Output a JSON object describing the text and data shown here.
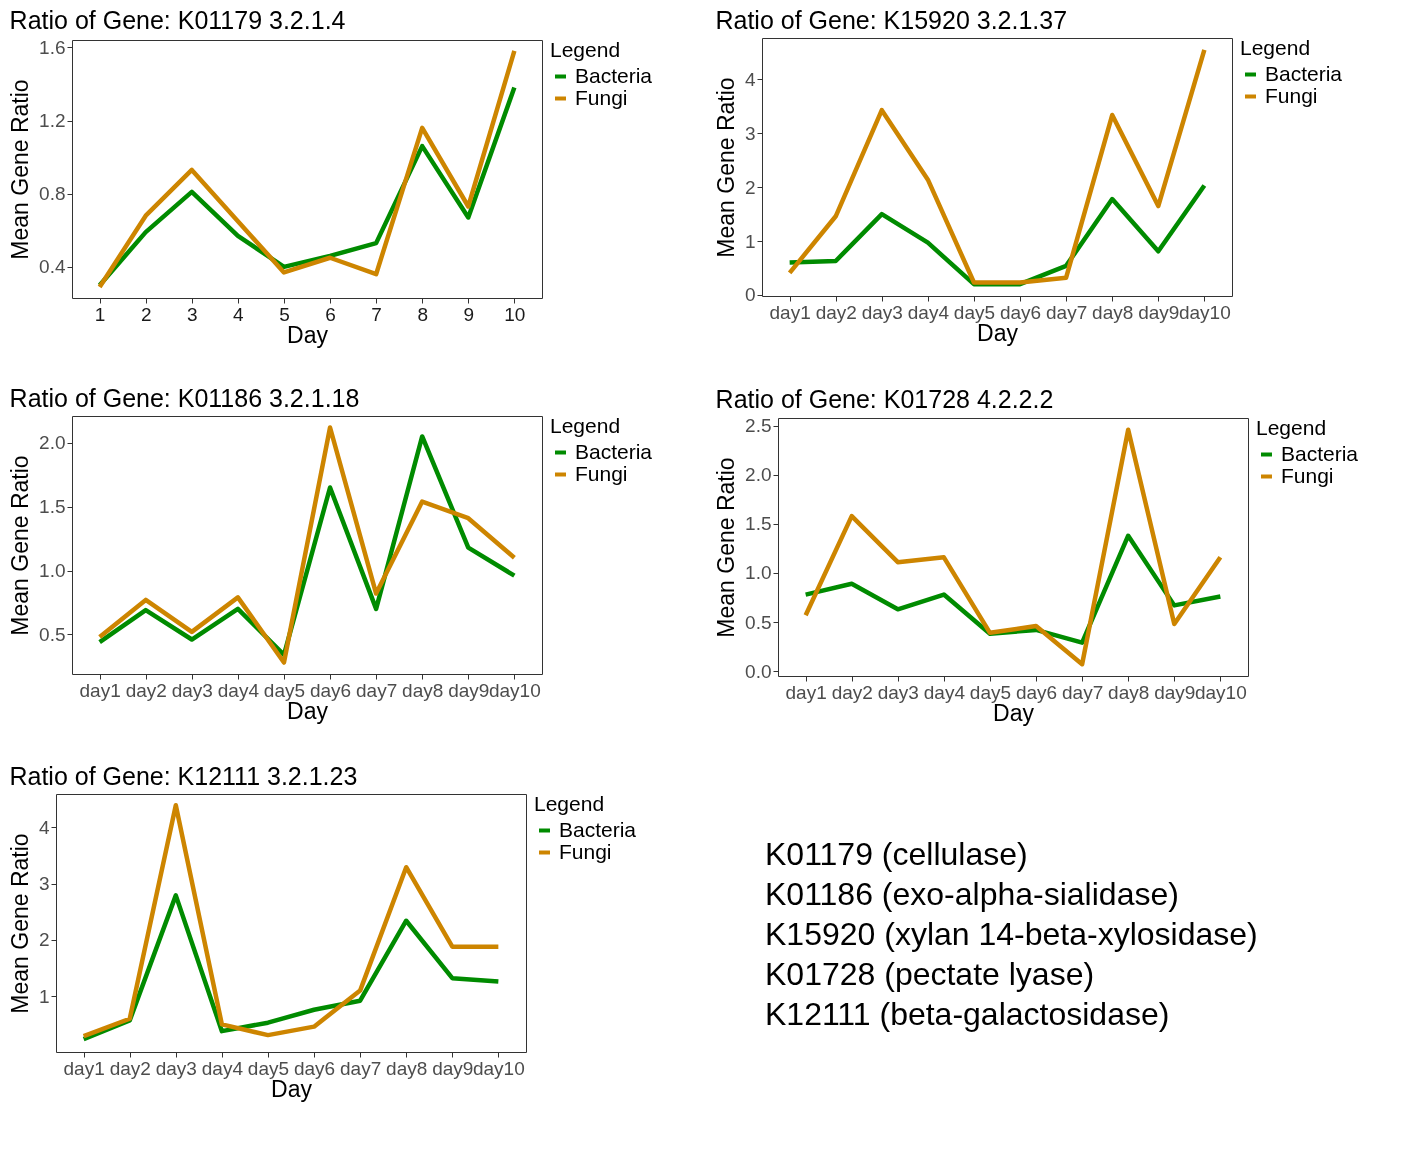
{
  "chart_data": [
    {
      "type": "line",
      "title": "Ratio of Gene: K01179   3.2.1.4",
      "xlabel": "Day",
      "ylabel": "Mean Gene Ratio",
      "legend_title": "Legend",
      "legend": "right",
      "x": [
        1,
        2,
        3,
        4,
        5,
        6,
        7,
        8,
        9,
        10
      ],
      "xlim": [
        0.4,
        10.6
      ],
      "xticks": [
        1,
        2,
        3,
        4,
        5,
        6,
        7,
        8,
        9,
        10
      ],
      "ylim": [
        0.23,
        1.64
      ],
      "yticks": [
        0.4,
        0.8,
        1.2,
        1.6
      ],
      "series": [
        {
          "name": "Bacteria",
          "color": "#008b00",
          "values": [
            0.3,
            0.59,
            0.81,
            0.57,
            0.4,
            0.46,
            0.53,
            1.06,
            0.67,
            1.38
          ]
        },
        {
          "name": "Fungi",
          "color": "#cd8500",
          "values": [
            0.29,
            0.68,
            0.93,
            0.65,
            0.37,
            0.45,
            0.36,
            1.16,
            0.73,
            1.58
          ]
        }
      ]
    },
    {
      "type": "line",
      "title": "Ratio of Gene: K15920   3.2.1.37",
      "xlabel": "Day",
      "ylabel": "Mean Gene Ratio",
      "legend_title": "Legend",
      "legend": "right",
      "categories": [
        "day1",
        "day2",
        "day3",
        "day4",
        "day5",
        "day6",
        "day7",
        "day8",
        "day9",
        "day10"
      ],
      "ylim": [
        -0.02,
        4.77
      ],
      "yticks": [
        0,
        1,
        2,
        3,
        4
      ],
      "series": [
        {
          "name": "Bacteria",
          "color": "#008b00",
          "values": [
            0.6,
            0.63,
            1.5,
            0.97,
            0.2,
            0.2,
            0.54,
            1.78,
            0.81,
            2.03
          ]
        },
        {
          "name": "Fungi",
          "color": "#cd8500",
          "values": [
            0.41,
            1.46,
            3.43,
            2.14,
            0.23,
            0.23,
            0.32,
            3.34,
            1.65,
            4.55
          ]
        }
      ]
    },
    {
      "type": "line",
      "title": "Ratio of Gene: K01186   3.2.1.18",
      "xlabel": "Day",
      "ylabel": "Mean Gene Ratio",
      "legend_title": "Legend",
      "legend": "right",
      "categories": [
        "day1",
        "day2",
        "day3",
        "day4",
        "day5",
        "day6",
        "day7",
        "day8",
        "day9",
        "day10"
      ],
      "ylim": [
        0.19,
        2.21
      ],
      "yticks": [
        {
          "value": 0.5,
          "label": "0.5"
        },
        {
          "value": 1,
          "label": "1.0"
        },
        {
          "value": 1.5,
          "label": "1.5"
        },
        {
          "value": 2,
          "label": "2.0"
        }
      ],
      "series": [
        {
          "name": "Bacteria",
          "color": "#008b00",
          "values": [
            0.44,
            0.69,
            0.46,
            0.7,
            0.34,
            1.65,
            0.7,
            2.05,
            1.18,
            0.96
          ]
        },
        {
          "name": "Fungi",
          "color": "#cd8500",
          "values": [
            0.48,
            0.77,
            0.52,
            0.79,
            0.28,
            2.12,
            0.82,
            1.54,
            1.41,
            1.1
          ]
        }
      ]
    },
    {
      "type": "line",
      "title": "Ratio of Gene: K01728   4.2.2.2",
      "xlabel": "Day",
      "ylabel": "Mean Gene Ratio",
      "legend_title": "Legend",
      "legend": "right",
      "categories": [
        "day1",
        "day2",
        "day3",
        "day4",
        "day5",
        "day6",
        "day7",
        "day8",
        "day9",
        "day10"
      ],
      "ylim": [
        -0.05,
        2.58
      ],
      "yticks": [
        {
          "value": 0,
          "label": "0.0"
        },
        {
          "value": 0.5,
          "label": "0.5"
        },
        {
          "value": 1,
          "label": "1.0"
        },
        {
          "value": 1.5,
          "label": "1.5"
        },
        {
          "value": 2,
          "label": "2.0"
        },
        {
          "value": 2.5,
          "label": "2.5"
        }
      ],
      "series": [
        {
          "name": "Bacteria",
          "color": "#008b00",
          "values": [
            0.78,
            0.89,
            0.63,
            0.78,
            0.38,
            0.42,
            0.29,
            1.38,
            0.67,
            0.76
          ]
        },
        {
          "name": "Fungi",
          "color": "#cd8500",
          "values": [
            0.57,
            1.58,
            1.11,
            1.16,
            0.39,
            0.46,
            0.07,
            2.46,
            0.48,
            1.16
          ]
        }
      ]
    },
    {
      "type": "line",
      "title": "Ratio of Gene: K12111   3.2.1.23",
      "xlabel": "Day",
      "ylabel": "Mean Gene Ratio",
      "legend_title": "Legend",
      "legend": "right",
      "categories": [
        "day1",
        "day2",
        "day3",
        "day4",
        "day5",
        "day6",
        "day7",
        "day8",
        "day9",
        "day10"
      ],
      "ylim": [
        0.01,
        4.59
      ],
      "yticks": [
        1,
        2,
        3,
        4
      ],
      "series": [
        {
          "name": "Bacteria",
          "color": "#008b00",
          "values": [
            0.24,
            0.57,
            2.79,
            0.38,
            0.53,
            0.76,
            0.92,
            2.34,
            1.32,
            1.26
          ]
        },
        {
          "name": "Fungi",
          "color": "#cd8500",
          "values": [
            0.29,
            0.6,
            4.39,
            0.5,
            0.31,
            0.46,
            1.1,
            3.29,
            1.88,
            1.88
          ]
        }
      ]
    },
    {
      "type": "other",
      "annotations": [
        "K01179 (cellulase)",
        "K01186 (exo-alpha-sialidase)",
        "K15920 (xylan 14-beta-xylosidase)",
        "K01728 (pectate lyase)",
        "K12111 (beta-galactosidase)"
      ]
    }
  ]
}
